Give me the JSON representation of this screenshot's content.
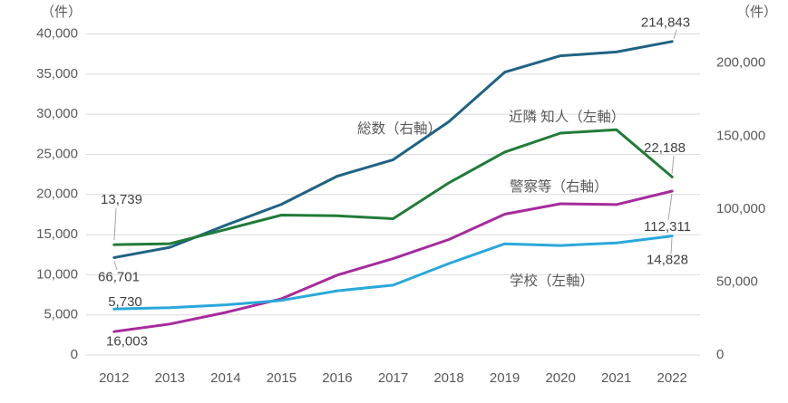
{
  "chart_data": {
    "type": "line",
    "title": "",
    "unit_left": "（件）",
    "unit_right": "（件）",
    "x_labels": [
      "2012",
      "2013",
      "2014",
      "2015",
      "2016",
      "2017",
      "2018",
      "2019",
      "2020",
      "2021",
      "2022"
    ],
    "left_axis": {
      "min": 0,
      "max": 40000,
      "tick_step": 5000,
      "tick_labels": [
        "0",
        "5,000",
        "10,000",
        "15,000",
        "20,000",
        "25,000",
        "30,000",
        "35,000",
        "40,000"
      ]
    },
    "right_axis": {
      "min": 0,
      "max": 220000,
      "tick_values": [
        0,
        50000,
        100000,
        150000,
        200000
      ],
      "tick_labels": [
        "0",
        "50,000",
        "100,000",
        "150,000",
        "200,000"
      ]
    },
    "grid": true,
    "legend_position": "inline-series-labels",
    "series": [
      {
        "key": "total",
        "name": "総数（右軸）",
        "axis": "right",
        "color": "#1F6383",
        "values": [
          66701,
          73802,
          88931,
          103286,
          122575,
          133778,
          159838,
          193780,
          205044,
          207660,
          214843
        ]
      },
      {
        "key": "neighbors",
        "name": "近隣 知人（左軸）",
        "axis": "left",
        "color": "#217B38",
        "values": [
          13739,
          13866,
          15636,
          17428,
          17341,
          16982,
          21449,
          25285,
          27641,
          28075,
          22188
        ]
      },
      {
        "key": "police",
        "name": "警察等（右軸）",
        "axis": "right",
        "color": "#A62B9C",
        "values": [
          16003,
          21223,
          29172,
          38524,
          54812,
          66055,
          79138,
          96473,
          103625,
          103104,
          112311
        ]
      },
      {
        "key": "school",
        "name": "学校（左軸）",
        "axis": "left",
        "color": "#29A8DB",
        "values": [
          5730,
          5900,
          6250,
          6800,
          8000,
          8700,
          11400,
          13856,
          13644,
          13972,
          14828
        ]
      }
    ],
    "point_labels": [
      {
        "series": "neighbors",
        "index": 0,
        "text": "13,739"
      },
      {
        "series": "total",
        "index": 0,
        "text": "66,701"
      },
      {
        "series": "school",
        "index": 0,
        "text": "5,730"
      },
      {
        "series": "police",
        "index": 0,
        "text": "16,003"
      },
      {
        "series": "total",
        "index": 10,
        "text": "214,843"
      },
      {
        "series": "neighbors",
        "index": 10,
        "text": "22,188"
      },
      {
        "series": "police",
        "index": 10,
        "text": "112,311"
      },
      {
        "series": "school",
        "index": 10,
        "text": "14,828"
      }
    ],
    "colors": {
      "gridline": "#D9D9D9",
      "axis_text": "#595959",
      "series_label_text": "#595959",
      "point_label_text": "#404040",
      "leader_line": "#A6A6A6",
      "background": "#FFFFFF"
    }
  }
}
